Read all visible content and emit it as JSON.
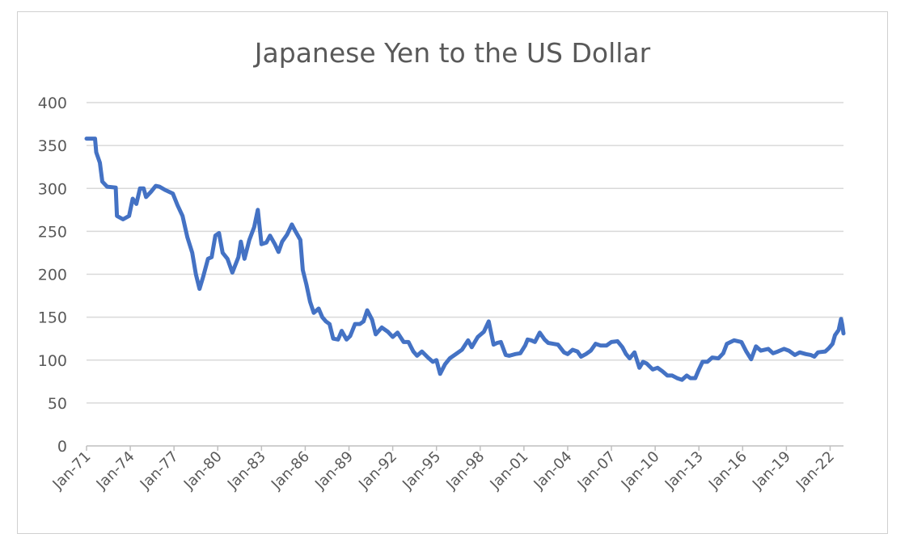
{
  "chart_data": {
    "type": "line",
    "title": "Japanese Yen to the US Dollar",
    "xlabel": "",
    "ylabel": "",
    "ylim": [
      0,
      400
    ],
    "yticks": [
      "0",
      "50",
      "100",
      "150",
      "200",
      "250",
      "300",
      "350",
      "400"
    ],
    "xlim": [
      "1971-01",
      "2022-12"
    ],
    "xticks": [
      "Jan-71",
      "Jan-74",
      "Jan-77",
      "Jan-80",
      "Jan-83",
      "Jan-86",
      "Jan-89",
      "Jan-92",
      "Jan-95",
      "Jan-98",
      "Jan-01",
      "Jan-04",
      "Jan-07",
      "Jan-10",
      "Jan-13",
      "Jan-16",
      "Jan-19",
      "Jan-22"
    ],
    "grid": true,
    "legend": "none",
    "line_color": "#4472c4",
    "points": [
      [
        "1971-01",
        358
      ],
      [
        "1971-08",
        358
      ],
      [
        "1971-09",
        342
      ],
      [
        "1971-12",
        330
      ],
      [
        "1972-02",
        308
      ],
      [
        "1972-06",
        302
      ],
      [
        "1973-01",
        301
      ],
      [
        "1973-02",
        268
      ],
      [
        "1973-07",
        264
      ],
      [
        "1973-12",
        268
      ],
      [
        "1974-03",
        288
      ],
      [
        "1974-06",
        282
      ],
      [
        "1974-09",
        300
      ],
      [
        "1974-12",
        300
      ],
      [
        "1975-02",
        290
      ],
      [
        "1975-06",
        296
      ],
      [
        "1975-10",
        303
      ],
      [
        "1976-01",
        302
      ],
      [
        "1976-06",
        298
      ],
      [
        "1976-12",
        294
      ],
      [
        "1977-04",
        280
      ],
      [
        "1977-08",
        268
      ],
      [
        "1977-12",
        243
      ],
      [
        "1978-04",
        225
      ],
      [
        "1978-07",
        200
      ],
      [
        "1978-10",
        183
      ],
      [
        "1979-01",
        197
      ],
      [
        "1979-05",
        218
      ],
      [
        "1979-08",
        220
      ],
      [
        "1979-11",
        245
      ],
      [
        "1980-02",
        248
      ],
      [
        "1980-05",
        225
      ],
      [
        "1980-09",
        218
      ],
      [
        "1981-01",
        202
      ],
      [
        "1981-06",
        220
      ],
      [
        "1981-08",
        238
      ],
      [
        "1981-11",
        218
      ],
      [
        "1982-03",
        240
      ],
      [
        "1982-07",
        255
      ],
      [
        "1982-10",
        275
      ],
      [
        "1983-01",
        235
      ],
      [
        "1983-05",
        237
      ],
      [
        "1983-08",
        245
      ],
      [
        "1983-12",
        235
      ],
      [
        "1984-03",
        226
      ],
      [
        "1984-06",
        238
      ],
      [
        "1984-10",
        246
      ],
      [
        "1985-02",
        258
      ],
      [
        "1985-05",
        250
      ],
      [
        "1985-09",
        240
      ],
      [
        "1985-11",
        205
      ],
      [
        "1986-02",
        188
      ],
      [
        "1986-05",
        168
      ],
      [
        "1986-08",
        155
      ],
      [
        "1986-12",
        160
      ],
      [
        "1987-03",
        150
      ],
      [
        "1987-06",
        145
      ],
      [
        "1987-09",
        142
      ],
      [
        "1987-12",
        125
      ],
      [
        "1988-04",
        124
      ],
      [
        "1988-07",
        134
      ],
      [
        "1988-11",
        124
      ],
      [
        "1989-02",
        128
      ],
      [
        "1989-06",
        142
      ],
      [
        "1989-10",
        142
      ],
      [
        "1990-01",
        145
      ],
      [
        "1990-04",
        158
      ],
      [
        "1990-08",
        147
      ],
      [
        "1990-11",
        130
      ],
      [
        "1991-04",
        138
      ],
      [
        "1991-09",
        133
      ],
      [
        "1992-01",
        127
      ],
      [
        "1992-05",
        132
      ],
      [
        "1992-10",
        121
      ],
      [
        "1993-02",
        121
      ],
      [
        "1993-06",
        110
      ],
      [
        "1993-09",
        105
      ],
      [
        "1994-01",
        110
      ],
      [
        "1994-06",
        103
      ],
      [
        "1994-10",
        98
      ],
      [
        "1995-01",
        100
      ],
      [
        "1995-04",
        84
      ],
      [
        "1995-08",
        95
      ],
      [
        "1995-12",
        102
      ],
      [
        "1996-05",
        107
      ],
      [
        "1996-10",
        112
      ],
      [
        "1997-03",
        123
      ],
      [
        "1997-06",
        115
      ],
      [
        "1997-11",
        127
      ],
      [
        "1998-04",
        133
      ],
      [
        "1998-08",
        145
      ],
      [
        "1998-12",
        118
      ],
      [
        "1999-03",
        120
      ],
      [
        "1999-06",
        121
      ],
      [
        "1999-10",
        106
      ],
      [
        "2000-01",
        105
      ],
      [
        "2000-06",
        107
      ],
      [
        "2000-10",
        108
      ],
      [
        "2001-02",
        117
      ],
      [
        "2001-04",
        124
      ],
      [
        "2001-07",
        123
      ],
      [
        "2001-10",
        121
      ],
      [
        "2002-02",
        132
      ],
      [
        "2002-06",
        124
      ],
      [
        "2002-09",
        120
      ],
      [
        "2003-01",
        119
      ],
      [
        "2003-05",
        118
      ],
      [
        "2003-10",
        109
      ],
      [
        "2004-01",
        107
      ],
      [
        "2004-05",
        112
      ],
      [
        "2004-09",
        110
      ],
      [
        "2004-12",
        104
      ],
      [
        "2005-04",
        107
      ],
      [
        "2005-08",
        111
      ],
      [
        "2005-12",
        119
      ],
      [
        "2006-04",
        117
      ],
      [
        "2006-09",
        117
      ],
      [
        "2007-01",
        121
      ],
      [
        "2007-06",
        122
      ],
      [
        "2007-10",
        115
      ],
      [
        "2008-01",
        107
      ],
      [
        "2008-04",
        102
      ],
      [
        "2008-08",
        109
      ],
      [
        "2008-12",
        91
      ],
      [
        "2009-03",
        98
      ],
      [
        "2009-06",
        96
      ],
      [
        "2009-11",
        89
      ],
      [
        "2010-03",
        91
      ],
      [
        "2010-07",
        87
      ],
      [
        "2010-11",
        82
      ],
      [
        "2011-03",
        82
      ],
      [
        "2011-07",
        79
      ],
      [
        "2011-11",
        77
      ],
      [
        "2012-03",
        82
      ],
      [
        "2012-06",
        79
      ],
      [
        "2012-10",
        79
      ],
      [
        "2013-01",
        89
      ],
      [
        "2013-04",
        98
      ],
      [
        "2013-08",
        98
      ],
      [
        "2013-12",
        103
      ],
      [
        "2014-05",
        102
      ],
      [
        "2014-09",
        108
      ],
      [
        "2014-12",
        119
      ],
      [
        "2015-06",
        123
      ],
      [
        "2015-12",
        121
      ],
      [
        "2016-04",
        110
      ],
      [
        "2016-08",
        101
      ],
      [
        "2016-12",
        116
      ],
      [
        "2017-04",
        111
      ],
      [
        "2017-10",
        113
      ],
      [
        "2018-02",
        108
      ],
      [
        "2018-06",
        110
      ],
      [
        "2018-11",
        113
      ],
      [
        "2019-03",
        111
      ],
      [
        "2019-08",
        106
      ],
      [
        "2019-12",
        109
      ],
      [
        "2020-05",
        107
      ],
      [
        "2020-09",
        106
      ],
      [
        "2020-12",
        104
      ],
      [
        "2021-03",
        109
      ],
      [
        "2021-09",
        110
      ],
      [
        "2021-12",
        114
      ],
      [
        "2022-03",
        119
      ],
      [
        "2022-05",
        129
      ],
      [
        "2022-08",
        135
      ],
      [
        "2022-10",
        148
      ],
      [
        "2022-11",
        141
      ],
      [
        "2022-12",
        131
      ]
    ]
  }
}
